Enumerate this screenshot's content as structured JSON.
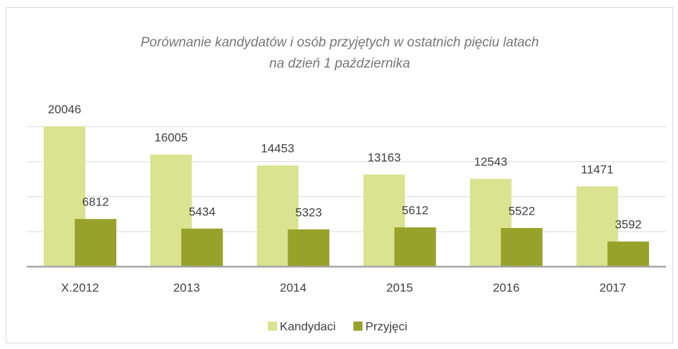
{
  "chart_data": {
    "type": "bar",
    "title": [
      "Porównanie kandydatów i osób przyjętych w ostatnich pięciu latach",
      "na dzień 1 października"
    ],
    "categories": [
      "X.2012",
      "2013",
      "2014",
      "2015",
      "2016",
      "2017"
    ],
    "series": [
      {
        "name": "Kandydaci",
        "color": "#d9e390",
        "values": [
          20046,
          16005,
          14453,
          13163,
          12543,
          11471
        ]
      },
      {
        "name": "Przyjęci",
        "color": "#97a22a",
        "values": [
          6812,
          5434,
          5323,
          5612,
          5522,
          3592
        ]
      }
    ],
    "ylim": [
      0,
      20000
    ],
    "yticks": [
      0,
      5000,
      10000,
      15000,
      20000
    ],
    "grid": true,
    "legend": "bottom"
  }
}
